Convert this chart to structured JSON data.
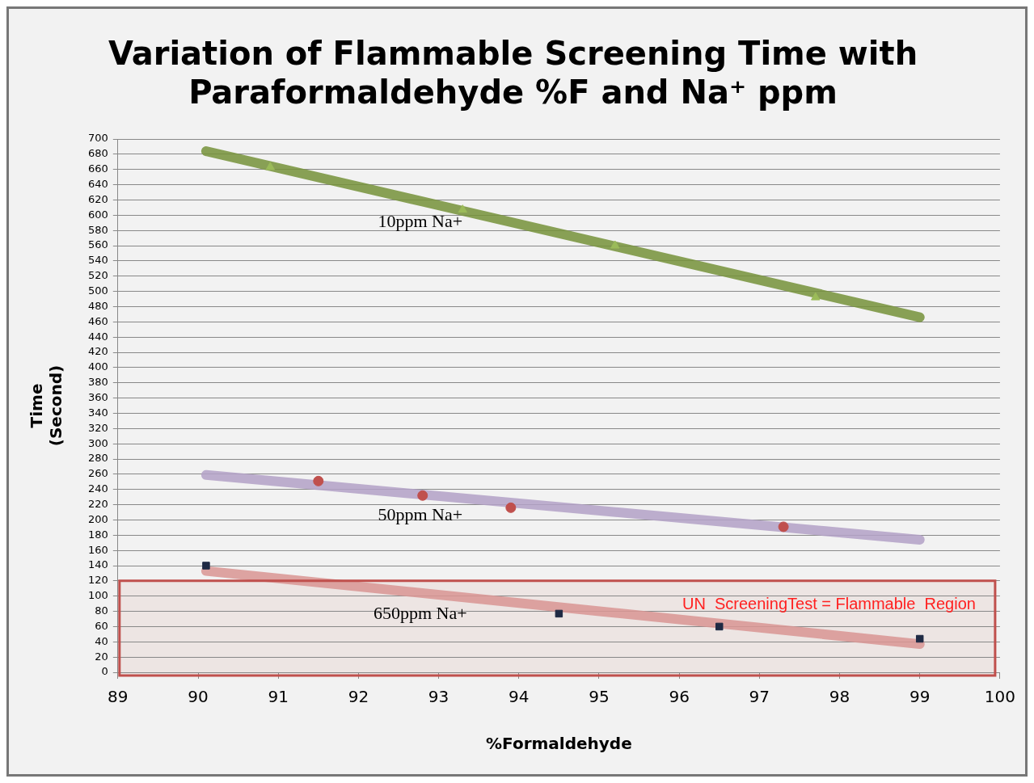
{
  "chart_data": {
    "type": "scatter",
    "title": "Variation of Flammable Screening Time with Paraformaldehyde %F and Na⁺ ppm",
    "xlabel": "%Formaldehyde",
    "ylabel": "Time (Second)",
    "xlim": [
      89,
      100
    ],
    "xticks": [
      89,
      90,
      91,
      92,
      93,
      94,
      95,
      96,
      97,
      98,
      99,
      100
    ],
    "ylim": [
      0,
      700
    ],
    "yticks": [
      0,
      20,
      40,
      60,
      80,
      100,
      120,
      140,
      160,
      180,
      200,
      220,
      240,
      260,
      280,
      300,
      320,
      340,
      360,
      380,
      400,
      420,
      440,
      460,
      480,
      500,
      520,
      540,
      560,
      580,
      600,
      620,
      640,
      660,
      680,
      700
    ],
    "grid": "y",
    "legend": false,
    "series": [
      {
        "type": "scatter",
        "marker": "triangle",
        "color": "#9bbb59",
        "x": [
          90.9,
          93.3,
          95.2,
          97.7
        ],
        "values": [
          663,
          607,
          560,
          492
        ]
      },
      {
        "type": "scatter",
        "marker": "circle",
        "color": "#c0504d",
        "x": [
          91.5,
          92.8,
          93.9,
          97.3
        ],
        "values": [
          251,
          232,
          216,
          191
        ]
      },
      {
        "type": "scatter",
        "marker": "square",
        "color": "#1f2a44",
        "x": [
          90.1,
          94.5,
          96.5,
          99
        ],
        "values": [
          140,
          77,
          60,
          44
        ]
      },
      {
        "type": "line",
        "name": "10ppm Na+",
        "color": "#77933c",
        "x": [
          90.1,
          99
        ],
        "values": [
          684,
          466
        ]
      },
      {
        "type": "line",
        "name": "50ppm Na+",
        "color": "#b3a2c7",
        "x": [
          90.1,
          99
        ],
        "values": [
          259,
          174
        ]
      },
      {
        "type": "line",
        "name": "650ppm Na+",
        "color": "#d99694",
        "x": [
          90.1,
          99
        ],
        "values": [
          133,
          37
        ]
      }
    ],
    "bands": [
      {
        "axis": "y",
        "from": 0,
        "to": 120,
        "label": "UN  ScreeningTest = Flammable  Region",
        "color": "#ede5e3"
      }
    ]
  }
}
